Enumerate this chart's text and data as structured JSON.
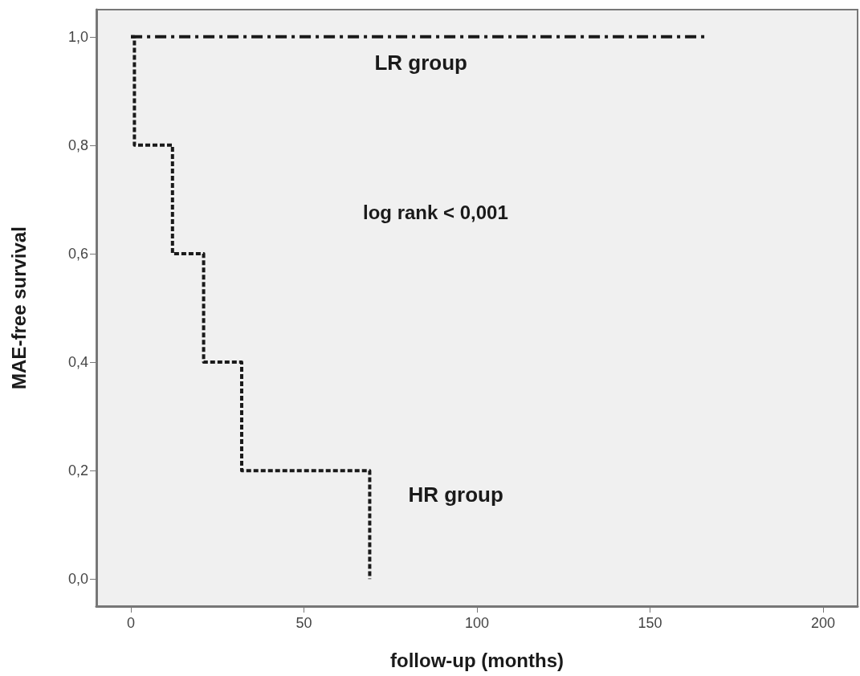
{
  "chart_data": {
    "type": "step",
    "xlabel": "follow-up (months)",
    "ylabel": "MAE-free survival",
    "annotations": [
      "log rank < 0,001"
    ],
    "series": [
      {
        "name": "LR group",
        "color": "#1a1a1a",
        "line_style": "dashed",
        "x": [
          0,
          166
        ],
        "values": [
          1,
          1
        ]
      },
      {
        "name": "HR group",
        "color": "#1a1a1a",
        "line_style": "dotted",
        "x": [
          0,
          1,
          12,
          21,
          32,
          69
        ],
        "values": [
          1,
          0.8,
          0.6,
          0.4,
          0.2,
          0
        ]
      }
    ],
    "xlim": [
      -10,
      210
    ],
    "xticks": [
      0,
      50,
      100,
      150,
      200
    ],
    "ylim": [
      -0.05,
      1.05
    ],
    "yticks": [
      {
        "value": 0,
        "label": "0,0"
      },
      {
        "value": 0.2,
        "label": "0,2"
      },
      {
        "value": 0.4,
        "label": "0,4"
      },
      {
        "value": 0.6,
        "label": "0,6"
      },
      {
        "value": 0.8,
        "label": "0,8"
      },
      {
        "value": 1,
        "label": "1,0"
      }
    ],
    "grid": false,
    "marker": "none"
  }
}
